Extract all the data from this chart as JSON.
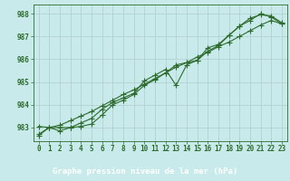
{
  "title": "Graphe pression niveau de la mer (hPa)",
  "hours": [
    0,
    1,
    2,
    3,
    4,
    5,
    6,
    7,
    8,
    9,
    10,
    11,
    12,
    13,
    14,
    15,
    16,
    17,
    18,
    19,
    20,
    21,
    22,
    23
  ],
  "line1": [
    982.65,
    983.0,
    982.85,
    983.0,
    983.05,
    983.15,
    983.55,
    984.0,
    984.2,
    984.45,
    984.85,
    985.1,
    985.4,
    985.75,
    985.85,
    985.95,
    986.5,
    986.65,
    987.05,
    987.45,
    987.8,
    987.95,
    987.9,
    987.6
  ],
  "line2": [
    983.05,
    983.0,
    983.0,
    983.0,
    983.2,
    983.4,
    983.8,
    984.1,
    984.3,
    984.5,
    985.05,
    985.3,
    985.55,
    984.85,
    985.75,
    985.95,
    986.35,
    986.6,
    987.05,
    987.45,
    987.7,
    988.0,
    987.85,
    987.55
  ],
  "line3_smooth": [
    982.7,
    983.0,
    983.1,
    983.3,
    983.5,
    983.7,
    983.95,
    984.2,
    984.45,
    984.65,
    984.9,
    985.15,
    985.4,
    985.65,
    985.85,
    986.1,
    986.3,
    986.55,
    986.75,
    987.0,
    987.25,
    987.5,
    987.7,
    987.55
  ],
  "ylim": [
    982.4,
    988.4
  ],
  "yticks": [
    983,
    984,
    985,
    986,
    987,
    988
  ],
  "line_color": "#2d6b2d",
  "bg_color": "#c8eaea",
  "grid_color": "#b0cccc",
  "title_bg": "#2d6b2d",
  "title_color": "#ffffff",
  "title_fontsize": 6.5,
  "tick_fontsize": 5.5,
  "marker": "+",
  "marker_size": 4.0,
  "linewidth": 0.8
}
